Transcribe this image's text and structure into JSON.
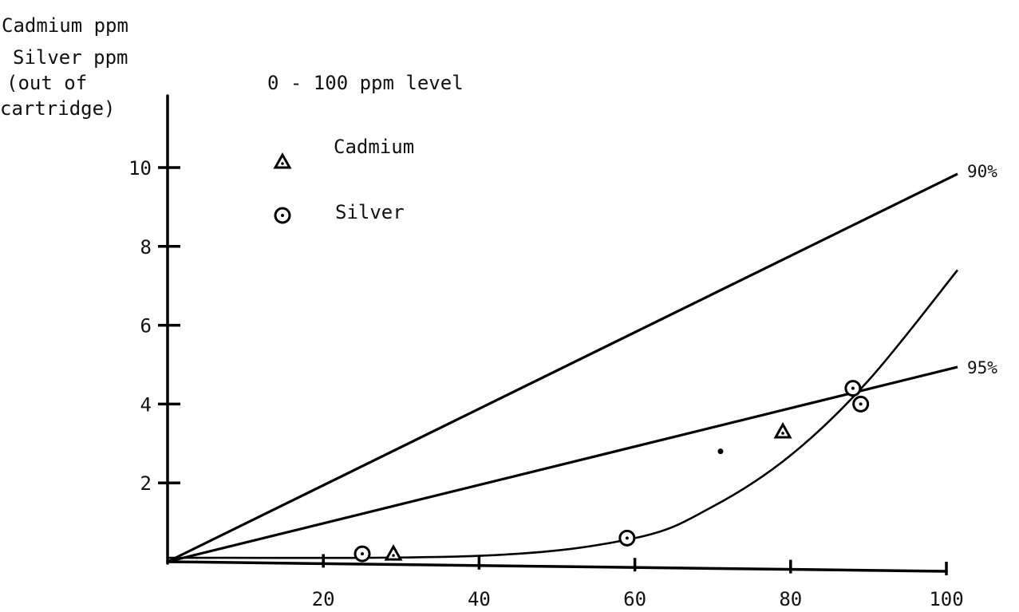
{
  "chart_data": {
    "type": "line",
    "title": "0 - 100 ppm level",
    "ylabel_lines": [
      "Cadmium ppm",
      "Silver ppm",
      "(out of",
      "cartridge)"
    ],
    "xlabel": "",
    "xlim": [
      0,
      100
    ],
    "ylim": [
      0,
      10
    ],
    "x_ticks": [
      20,
      40,
      60,
      80,
      100
    ],
    "y_ticks": [
      2,
      4,
      6,
      8,
      10
    ],
    "grid": false,
    "legend_position": "top-left",
    "legend": [
      {
        "name": "Cadmium",
        "marker": "triangle"
      },
      {
        "name": "Silver",
        "marker": "circle-dot"
      }
    ],
    "series": [
      {
        "name": "Cadmium",
        "marker": "triangle",
        "x": [
          29,
          79
        ],
        "y": [
          0.2,
          3.3
        ]
      },
      {
        "name": "Silver",
        "marker": "circle-dot",
        "x": [
          25,
          59,
          88,
          89
        ],
        "y": [
          0.2,
          0.6,
          4.4,
          4.0
        ]
      }
    ],
    "reference_lines": [
      {
        "label": "90%",
        "x": [
          0,
          100
        ],
        "y": [
          0,
          9.8
        ]
      },
      {
        "label": "95%",
        "x": [
          0,
          100
        ],
        "y": [
          0,
          4.9
        ]
      }
    ],
    "fitted_curve": {
      "x": [
        0,
        40,
        60,
        70,
        80,
        90,
        100
      ],
      "y": [
        0.1,
        0.15,
        0.6,
        1.4,
        2.7,
        4.6,
        7.4
      ]
    },
    "stray_points": [
      {
        "x": 71,
        "y": 2.8
      }
    ]
  }
}
